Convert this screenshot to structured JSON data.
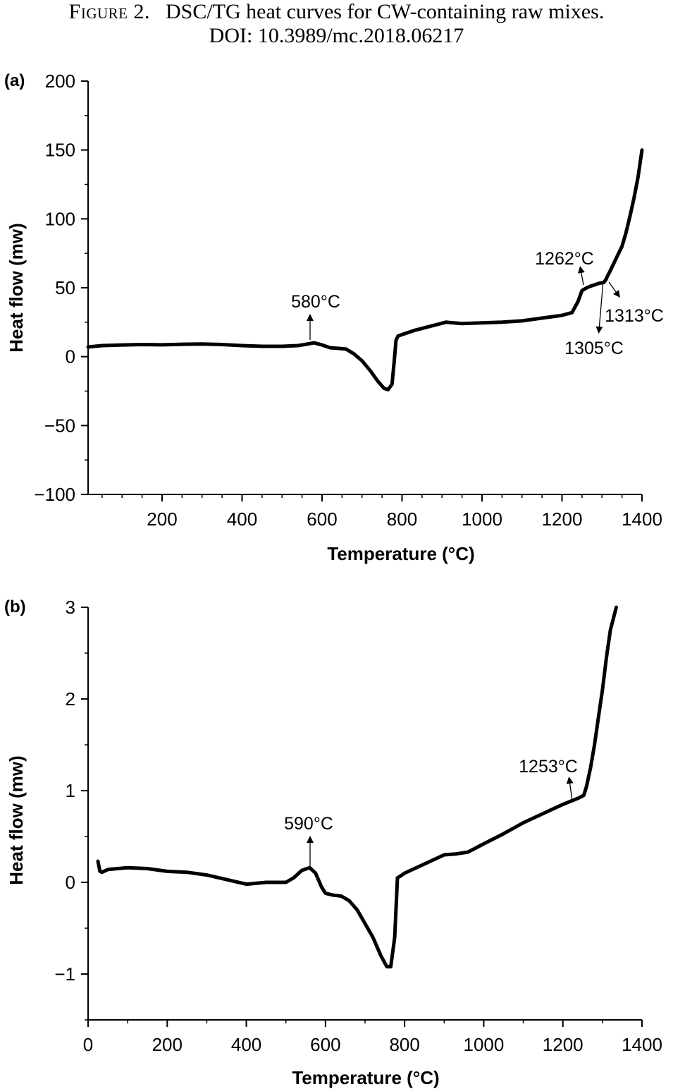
{
  "caption": {
    "label": "Figure 2.",
    "text": "DSC/TG heat curves for CW-containing raw mixes.",
    "doi": "DOI: 10.3989/mc.2018.06217"
  },
  "chart_data": [
    {
      "type": "line",
      "panel_label": "(a)",
      "xlabel": "Temperature (°C)",
      "ylabel": "Heat flow (mw)",
      "xlim": [
        15,
        1400
      ],
      "ylim": [
        -100,
        200
      ],
      "xticks": [
        200,
        400,
        600,
        800,
        1000,
        1200,
        1400
      ],
      "xtick_labels": [
        "200",
        "400",
        "600",
        "800",
        "1000",
        "1200",
        "1400"
      ],
      "yticks": [
        -100,
        -50,
        0,
        50,
        100,
        150,
        200
      ],
      "ytick_labels": [
        "−100",
        "−50",
        "0",
        "50",
        "100",
        "150",
        "200"
      ],
      "grid": false,
      "series": [
        {
          "x": [
            15,
            50,
            100,
            150,
            200,
            250,
            300,
            350,
            400,
            450,
            500,
            540,
            560,
            580,
            600,
            620,
            640,
            660,
            680,
            700,
            720,
            740,
            755,
            765,
            775,
            780,
            785,
            790,
            800,
            830,
            870,
            910,
            950,
            1000,
            1050,
            1100,
            1150,
            1200,
            1225,
            1240,
            1250,
            1262,
            1270,
            1280,
            1290,
            1305,
            1310,
            1313,
            1320,
            1330,
            1340,
            1350,
            1360,
            1370,
            1380,
            1390,
            1400
          ],
          "y": [
            7,
            8,
            8.5,
            8.8,
            8.6,
            9,
            9.2,
            8.8,
            8,
            7.5,
            7.5,
            8,
            9,
            10,
            8.5,
            6.5,
            6,
            5.5,
            2,
            -3,
            -10,
            -18,
            -23,
            -24,
            -20,
            -5,
            12,
            15,
            16,
            19,
            22,
            25,
            24,
            24.5,
            25,
            26,
            28,
            30,
            32,
            40,
            48,
            50,
            51,
            52,
            53,
            54,
            56,
            58,
            62,
            68,
            74,
            80,
            90,
            102,
            115,
            130,
            150
          ]
        }
      ],
      "annotations": [
        {
          "text": "580°C",
          "x": 580,
          "y": 10
        },
        {
          "text": "1262°C",
          "x": 1262,
          "y": 50
        },
        {
          "text": "1305°C",
          "x": 1305,
          "y": 54
        },
        {
          "text": "1313°C",
          "x": 1313,
          "y": 58
        }
      ]
    },
    {
      "type": "line",
      "panel_label": "(b)",
      "xlabel": "Temperature (°C)",
      "ylabel": "Heat flow (mw)",
      "xlim": [
        0,
        1400
      ],
      "ylim": [
        -1.5,
        3
      ],
      "xticks": [
        0,
        200,
        400,
        600,
        800,
        1000,
        1200,
        1400
      ],
      "xtick_labels": [
        "0",
        "200",
        "400",
        "600",
        "800",
        "1000",
        "1200",
        "1400"
      ],
      "yticks": [
        -1,
        0,
        1,
        2,
        3
      ],
      "ytick_labels": [
        "−1",
        "0",
        "1",
        "2",
        "3"
      ],
      "grid": false,
      "series": [
        {
          "x": [
            25,
            30,
            35,
            50,
            100,
            150,
            200,
            250,
            300,
            350,
            400,
            450,
            500,
            520,
            540,
            560,
            575,
            590,
            600,
            620,
            640,
            660,
            680,
            700,
            720,
            740,
            755,
            765,
            775,
            782,
            790,
            800,
            850,
            900,
            930,
            960,
            1000,
            1050,
            1100,
            1150,
            1200,
            1240,
            1253,
            1260,
            1270,
            1280,
            1290,
            1300,
            1310,
            1320,
            1335
          ],
          "y": [
            0.23,
            0.12,
            0.11,
            0.14,
            0.16,
            0.15,
            0.12,
            0.11,
            0.08,
            0.03,
            -0.02,
            0.0,
            0.0,
            0.05,
            0.13,
            0.16,
            0.1,
            -0.05,
            -0.12,
            -0.14,
            -0.15,
            -0.2,
            -0.3,
            -0.45,
            -0.6,
            -0.8,
            -0.92,
            -0.92,
            -0.6,
            0.05,
            0.07,
            0.1,
            0.2,
            0.3,
            0.31,
            0.33,
            0.42,
            0.53,
            0.65,
            0.75,
            0.85,
            0.92,
            0.95,
            1.05,
            1.25,
            1.5,
            1.8,
            2.1,
            2.45,
            2.75,
            3.0
          ]
        }
      ],
      "annotations": [
        {
          "text": "590°C",
          "x": 560,
          "y": 0.16
        },
        {
          "text": "1253°C",
          "x": 1240,
          "y": 0.92
        }
      ]
    }
  ]
}
